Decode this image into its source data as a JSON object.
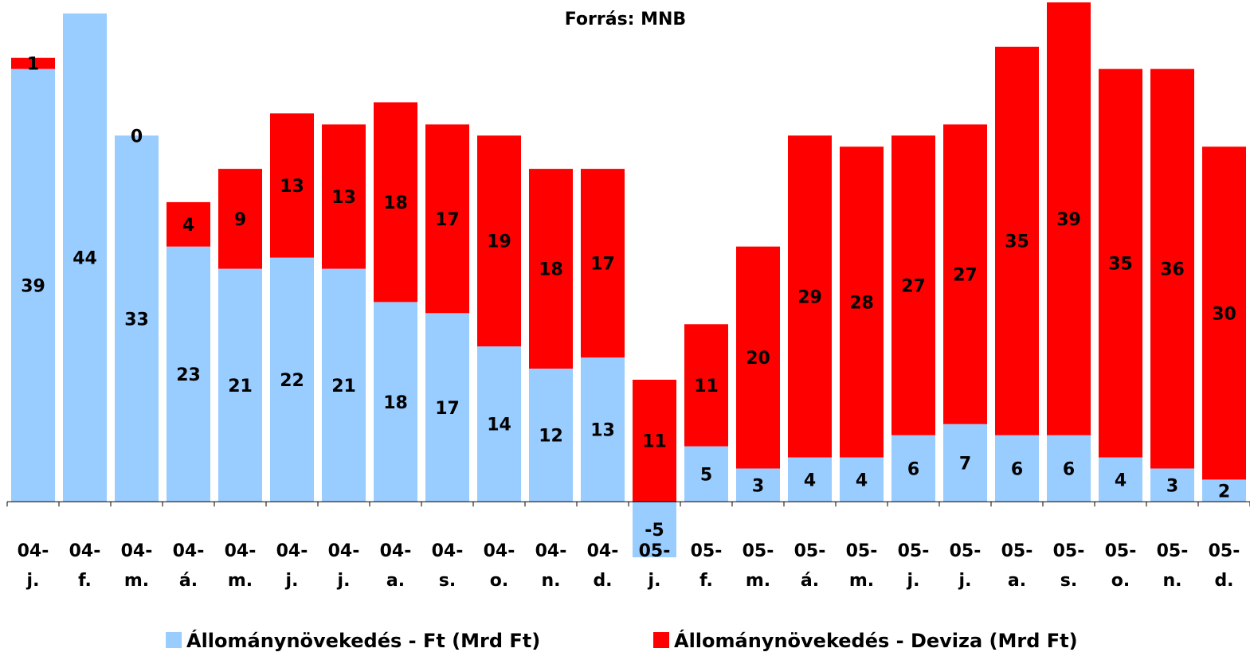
{
  "chart_data": {
    "type": "stacked_bar",
    "title": "Forrás: MNB",
    "categories": [
      [
        "04-",
        "j."
      ],
      [
        "04-",
        "f."
      ],
      [
        "04-",
        "m."
      ],
      [
        "04-",
        "á."
      ],
      [
        "04-",
        "m."
      ],
      [
        "04-",
        "j."
      ],
      [
        "04-",
        "j."
      ],
      [
        "04-",
        "a."
      ],
      [
        "04-",
        "s."
      ],
      [
        "04-",
        "o."
      ],
      [
        "04-",
        "n."
      ],
      [
        "04-",
        "d."
      ],
      [
        "05-",
        "j."
      ],
      [
        "05-",
        "f."
      ],
      [
        "05-",
        "m."
      ],
      [
        "05-",
        "á."
      ],
      [
        "05-",
        "m."
      ],
      [
        "05-",
        "j."
      ],
      [
        "05-",
        "j."
      ],
      [
        "05-",
        "a."
      ],
      [
        "05-",
        "s."
      ],
      [
        "05-",
        "o."
      ],
      [
        "05-",
        "n."
      ],
      [
        "05-",
        "d."
      ]
    ],
    "series": [
      {
        "name": "Állománynövekedés - Ft (Mrd Ft)",
        "color": "#99ccff",
        "values": [
          39,
          44,
          33,
          23,
          21,
          22,
          21,
          18,
          17,
          14,
          12,
          13,
          -5,
          5,
          3,
          4,
          4,
          6,
          7,
          6,
          6,
          4,
          3,
          2
        ]
      },
      {
        "name": "Állománynövekedés - Deviza (Mrd Ft)",
        "color": "#ff0000",
        "values": [
          1,
          null,
          0,
          4,
          9,
          13,
          13,
          18,
          17,
          19,
          18,
          17,
          11,
          11,
          20,
          29,
          28,
          27,
          27,
          35,
          39,
          35,
          36,
          30
        ]
      }
    ],
    "ylim": [
      -5,
      45
    ]
  }
}
